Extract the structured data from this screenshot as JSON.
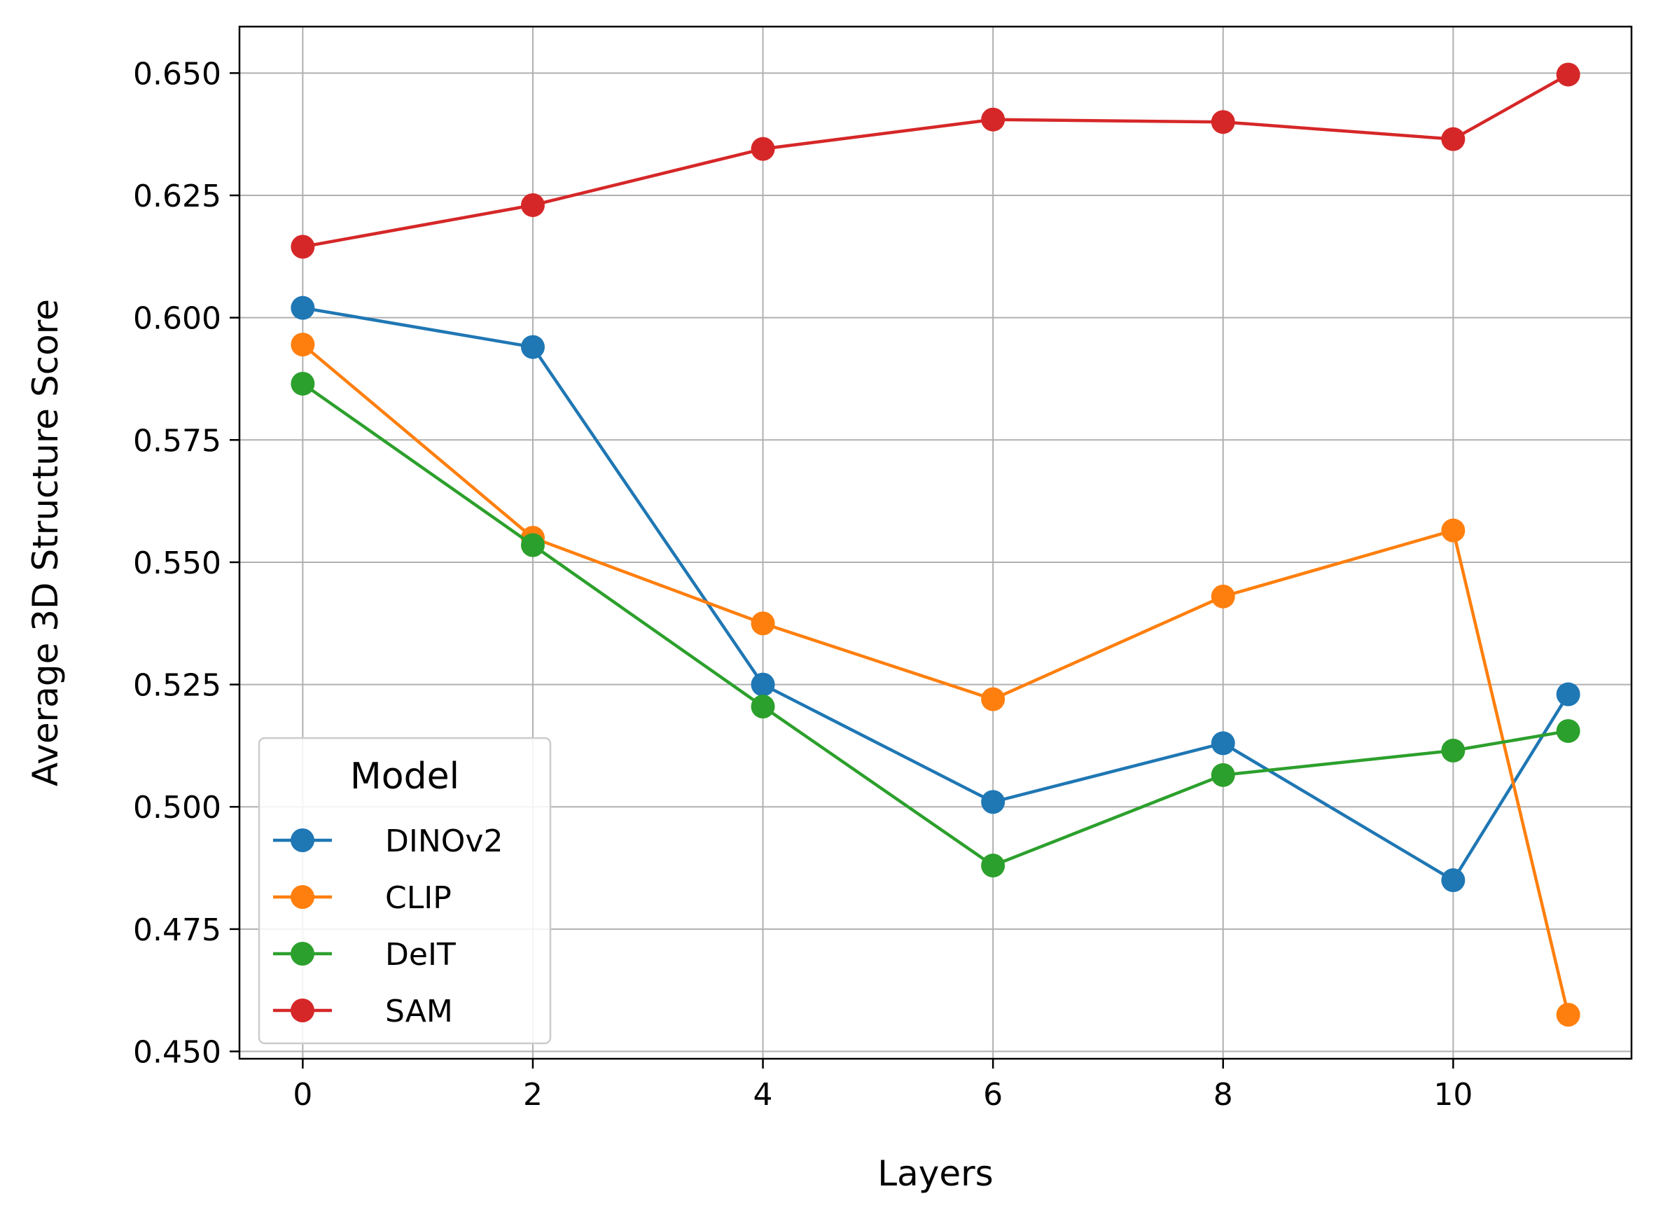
{
  "chart_data": {
    "type": "line",
    "title": "",
    "xlabel": "Layers",
    "ylabel": "Average 3D Structure Score",
    "x": [
      0,
      2,
      4,
      6,
      8,
      10,
      11
    ],
    "xlim": [
      -0.55,
      11.55
    ],
    "ylim": [
      0.4485,
      0.6595
    ],
    "xticks": [
      0,
      2,
      4,
      6,
      8,
      10
    ],
    "xtick_labels": [
      "0",
      "2",
      "4",
      "6",
      "8",
      "10"
    ],
    "yticks": [
      0.45,
      0.475,
      0.5,
      0.525,
      0.55,
      0.575,
      0.6,
      0.625,
      0.65
    ],
    "ytick_labels": [
      "0.450",
      "0.475",
      "0.500",
      "0.525",
      "0.550",
      "0.575",
      "0.600",
      "0.625",
      "0.650"
    ],
    "grid": true,
    "legend": {
      "title": "Model",
      "placement": "lower-left"
    },
    "series": [
      {
        "name": "DINOv2",
        "color": "#1f77b4",
        "values": [
          0.602,
          0.594,
          0.525,
          0.501,
          0.513,
          0.485,
          0.523
        ]
      },
      {
        "name": "CLIP",
        "color": "#ff7f0e",
        "values": [
          0.5945,
          0.555,
          0.5375,
          0.522,
          0.543,
          0.5565,
          0.4575
        ]
      },
      {
        "name": "DeIT",
        "color": "#2ca02c",
        "values": [
          0.5865,
          0.5535,
          0.5205,
          0.488,
          0.5065,
          0.5115,
          0.5155
        ]
      },
      {
        "name": "SAM",
        "color": "#d62728",
        "values": [
          0.6145,
          0.623,
          0.6345,
          0.6405,
          0.64,
          0.6365,
          0.6497
        ]
      }
    ]
  }
}
